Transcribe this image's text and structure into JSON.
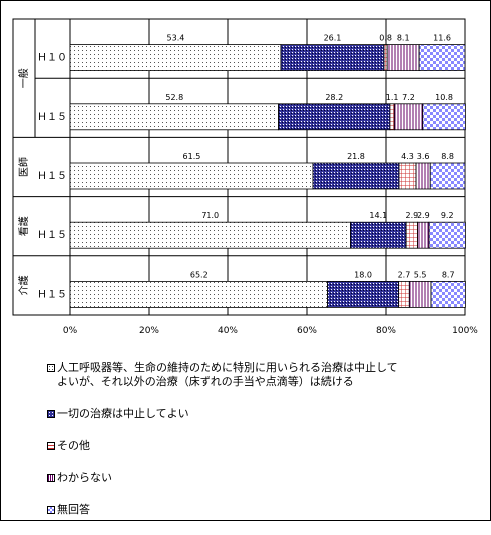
{
  "chart_data": {
    "type": "bar",
    "orientation": "horizontal",
    "stacked": true,
    "group_labels": [
      "一般",
      "医師",
      "看護",
      "介護"
    ],
    "categories": [
      "Ｈ１０",
      "Ｈ１５",
      "Ｈ１５",
      "Ｈ１５",
      "Ｈ１５"
    ],
    "x_ticks": [
      "0%",
      "20%",
      "40%",
      "60%",
      "80%",
      "100%"
    ],
    "xlim": [
      0,
      100
    ],
    "series": [
      {
        "name": "人工呼吸器等、生命の維持のために特別に用いられる治療は中止して\nよいが、それ以外の治療（床ずれの手当や点滴等）は続ける",
        "color": "#ffffff",
        "pattern": "dots",
        "values": [
          53.4,
          52.8,
          61.5,
          71.0,
          65.2
        ],
        "labels": [
          "53.4",
          "52.8",
          "61.5",
          "71.0",
          "65.2"
        ]
      },
      {
        "name": "一切の治療は中止してよい",
        "color": "#333399",
        "pattern": "dense-dots",
        "values": [
          26.1,
          28.2,
          21.8,
          14.1,
          18.0
        ],
        "labels": [
          "26.1",
          "28.2",
          "21.8",
          "14.1",
          "18.0"
        ]
      },
      {
        "name": "その他",
        "color": "#cc3333",
        "pattern": "grid",
        "values": [
          0.8,
          1.1,
          4.3,
          2.9,
          2.7
        ],
        "labels": [
          "0.8",
          "1.1",
          "4.3",
          "2.9",
          "2.7"
        ]
      },
      {
        "name": "わからない",
        "color": "#660066",
        "pattern": "vertical-lines",
        "values": [
          8.1,
          7.2,
          3.6,
          2.9,
          5.5
        ],
        "labels": [
          "8.1",
          "7.2",
          "3.6",
          "2.9",
          "5.5"
        ]
      },
      {
        "name": "無回答",
        "color": "#8888ff",
        "pattern": "checker",
        "values": [
          11.6,
          10.8,
          8.8,
          9.2,
          8.7
        ],
        "labels": [
          "11.6",
          "10.8",
          "8.8",
          "9.2",
          "8.7"
        ]
      }
    ],
    "grid": true,
    "legend": "bottom"
  }
}
